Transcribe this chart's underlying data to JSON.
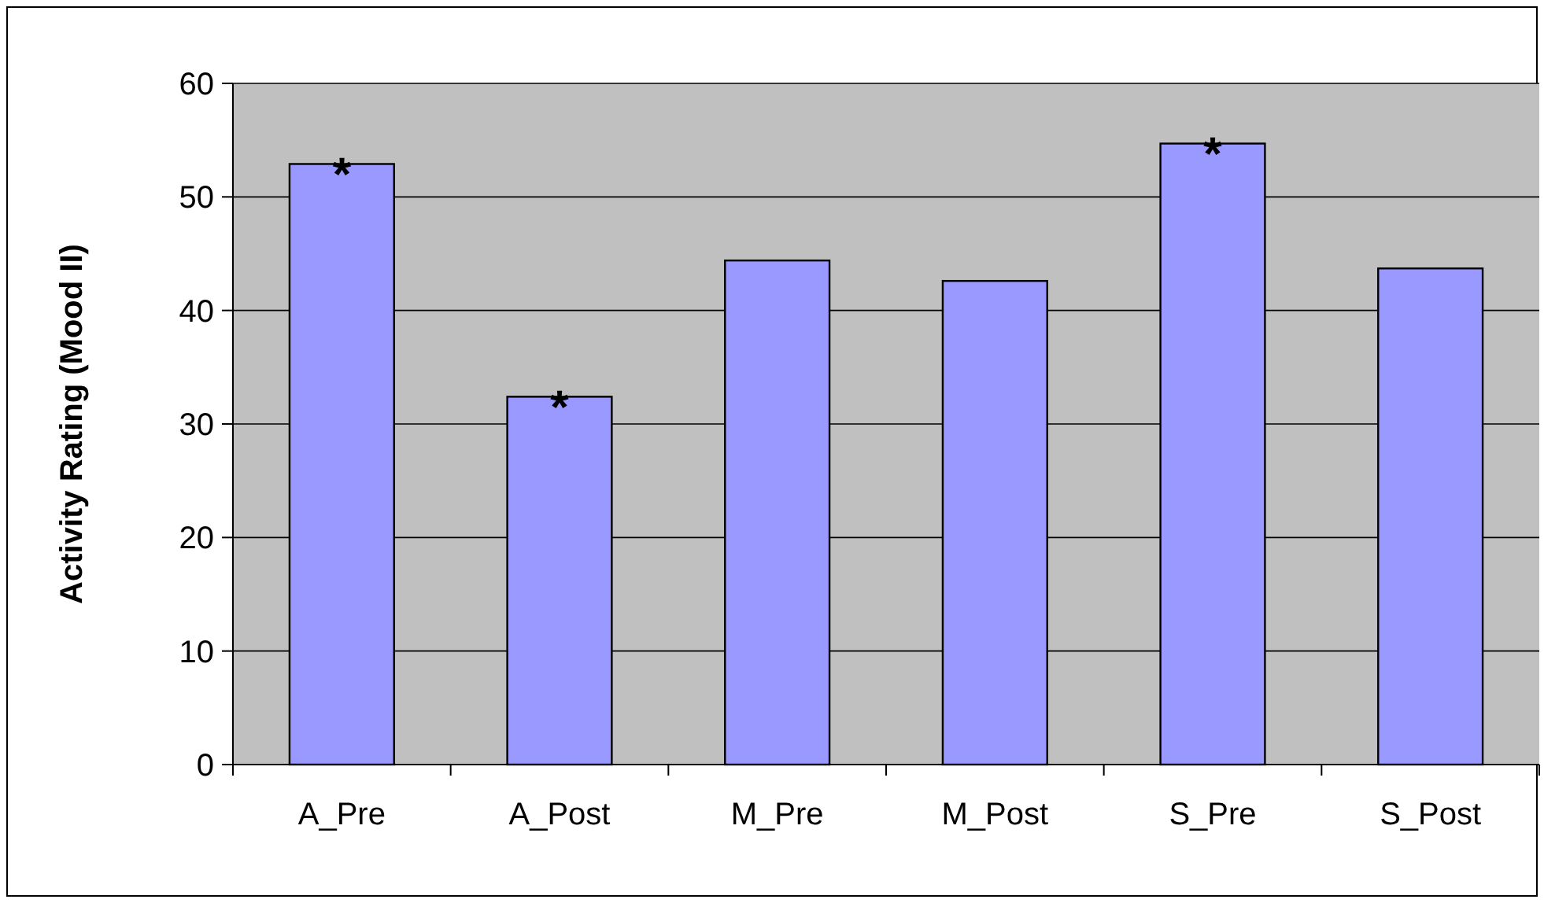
{
  "chart_data": {
    "type": "bar",
    "ylabel": "Activity Rating (Mood II)",
    "categories": [
      "A_Pre",
      "A_Post",
      "M_Pre",
      "M_Post",
      "S_Pre",
      "S_Post"
    ],
    "values": [
      52.9,
      32.4,
      44.4,
      42.6,
      54.7,
      43.7
    ],
    "color": "#9999ff",
    "ylim": [
      0,
      60
    ],
    "yticks": [
      0,
      10,
      20,
      30,
      40,
      50,
      60
    ],
    "grid": "y",
    "annotations": [
      {
        "text": "*",
        "x": "A_Pre",
        "y": 52.9
      },
      {
        "text": "*",
        "x": "A_Post",
        "y": 32.4
      },
      {
        "text": "*",
        "x": "S_Pre",
        "y": 54.7
      }
    ]
  }
}
